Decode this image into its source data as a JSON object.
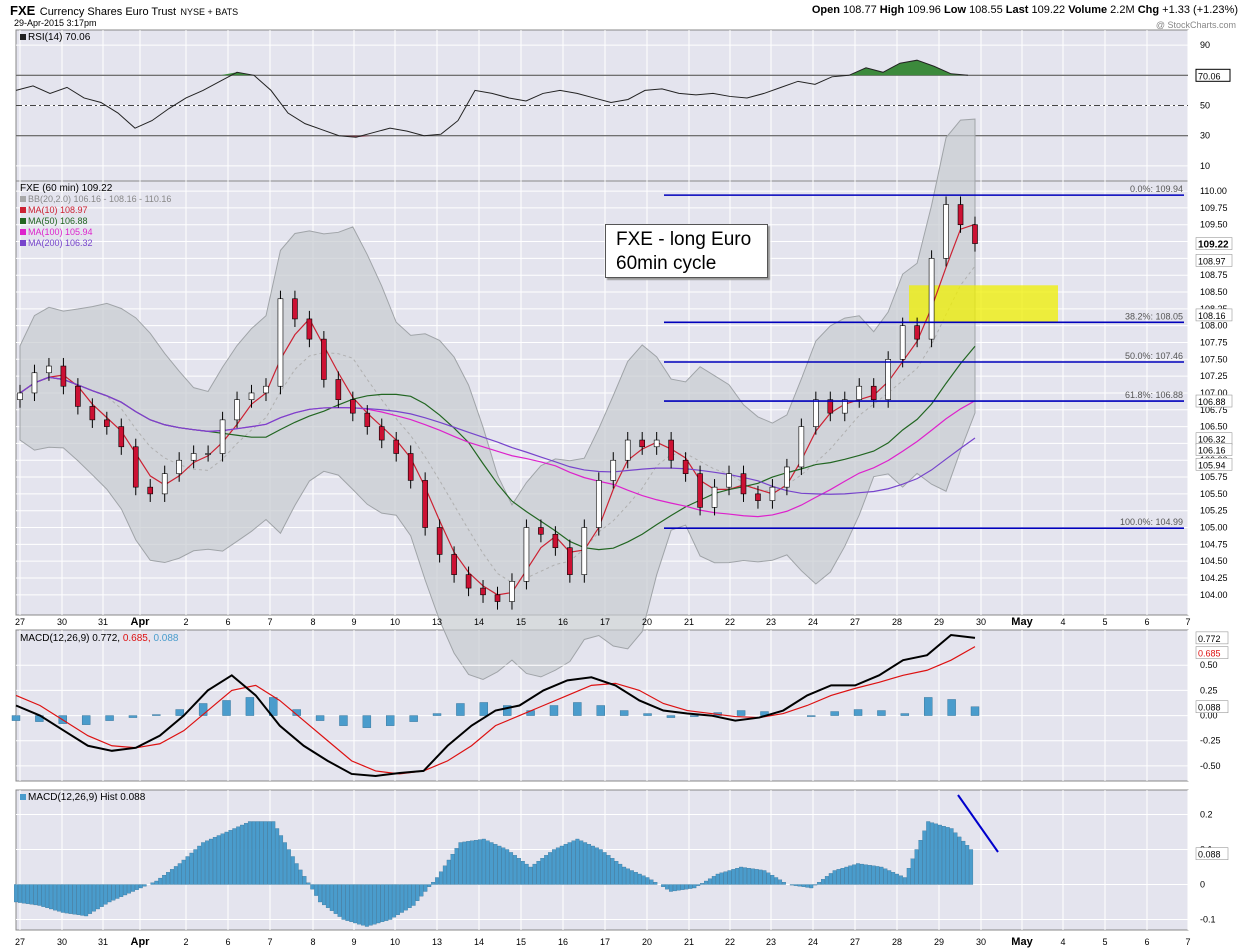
{
  "header": {
    "symbol": "FXE",
    "name": "Currency Shares Euro Trust",
    "exchange": "NYSE + BATS",
    "datetime": "29-Apr-2015 3:17pm",
    "open_label": "Open",
    "open": "108.77",
    "high_label": "High",
    "high": "109.96",
    "low_label": "Low",
    "low": "108.55",
    "last_label": "Last",
    "last": "109.22",
    "volume_label": "Volume",
    "volume": "2.2M",
    "chg_label": "Chg",
    "chg": "+1.33 (+1.23%)",
    "watermark": "@ StockCharts.com"
  },
  "annotation": {
    "line1": "FXE - long Euro",
    "line2": "60min cycle"
  },
  "chart_data": [
    {
      "type": "line",
      "panel": "rsi",
      "legend": "RSI(14) 70.06",
      "ylim": [
        0,
        100
      ],
      "yticks": [
        10,
        30,
        50,
        70,
        90
      ],
      "reference_lines": [
        30,
        50,
        70
      ],
      "last_label": "70.06",
      "values": [
        60,
        63,
        58,
        62,
        55,
        52,
        45,
        35,
        40,
        48,
        55,
        60,
        66,
        72,
        70,
        60,
        45,
        38,
        34,
        30,
        29,
        32,
        35,
        33,
        30,
        31,
        40,
        60,
        58,
        55,
        53,
        58,
        60,
        58,
        55,
        52,
        54,
        60,
        61,
        58,
        57,
        58,
        56,
        55,
        58,
        62,
        66,
        64,
        69,
        70,
        75,
        72,
        78,
        80,
        76,
        71,
        70
      ]
    },
    {
      "type": "candlestick",
      "panel": "price",
      "title": "FXE (60 min) 109.22",
      "ylim": [
        103.7,
        110.15
      ],
      "yticks": [
        104.0,
        104.25,
        104.5,
        104.75,
        105.0,
        105.25,
        105.5,
        105.75,
        106.0,
        106.25,
        106.5,
        106.75,
        107.0,
        107.25,
        107.5,
        107.75,
        108.0,
        108.25,
        108.5,
        108.75,
        109.0,
        109.25,
        109.5,
        109.75,
        110.0
      ],
      "x_labels": [
        "27",
        "30",
        "31",
        "Apr",
        "2",
        "6",
        "7",
        "8",
        "9",
        "10",
        "13",
        "14",
        "15",
        "16",
        "17",
        "20",
        "21",
        "22",
        "23",
        "24",
        "27",
        "28",
        "29",
        "30",
        "May",
        "4",
        "5",
        "6",
        "7"
      ],
      "legend": [
        {
          "label": "BB(20,2.0) 106.16 - 108.16 - 110.16",
          "color": "#a8a8a8"
        },
        {
          "label": "MA(10) 108.97",
          "color": "#cc2233"
        },
        {
          "label": "MA(50) 106.88",
          "color": "#226622"
        },
        {
          "label": "MA(100) 105.94",
          "color": "#dd22cc"
        },
        {
          "label": "MA(200) 106.32",
          "color": "#7744cc"
        }
      ],
      "closes": [
        107.0,
        107.3,
        107.4,
        107.1,
        106.8,
        106.6,
        106.5,
        106.2,
        105.6,
        105.5,
        105.8,
        106.0,
        106.1,
        106.1,
        106.6,
        106.9,
        107.0,
        107.1,
        108.4,
        108.1,
        107.8,
        107.2,
        106.9,
        106.7,
        106.5,
        106.3,
        106.1,
        105.7,
        105.0,
        104.6,
        104.3,
        104.1,
        104.0,
        103.9,
        104.2,
        105.0,
        104.9,
        104.7,
        104.3,
        105.0,
        105.7,
        106.0,
        106.3,
        106.2,
        106.3,
        106.0,
        105.8,
        105.3,
        105.6,
        105.8,
        105.5,
        105.4,
        105.6,
        105.9,
        106.5,
        106.9,
        106.7,
        106.9,
        107.1,
        106.9,
        107.5,
        108.0,
        107.8,
        109.0,
        109.8,
        109.5,
        109.22
      ],
      "fibonacci": [
        {
          "label": "0.0%: 109.94",
          "value": 109.94
        },
        {
          "label": "38.2%: 108.05",
          "value": 108.05
        },
        {
          "label": "50.0%: 107.46",
          "value": 107.46
        },
        {
          "label": "61.8%: 106.88",
          "value": 106.88
        },
        {
          "label": "100.0%: 104.99",
          "value": 104.99
        }
      ],
      "highlight_zone": [
        108.05,
        108.6
      ],
      "right_labels": [
        {
          "text": "109.22",
          "value": 109.22,
          "bold": true
        },
        {
          "text": "108.97",
          "value": 108.97
        },
        {
          "text": "108.16",
          "value": 108.16
        },
        {
          "text": "106.88",
          "value": 106.88
        },
        {
          "text": "106.32",
          "value": 106.32
        },
        {
          "text": "106.16",
          "value": 106.16
        },
        {
          "text": "105.94",
          "value": 105.94
        }
      ]
    },
    {
      "type": "line",
      "panel": "macd",
      "legend_prefix": "MACD(12,26,9)",
      "macd": "0.772",
      "signal": "0.685",
      "hist": "0.088",
      "ylim": [
        -0.65,
        0.85
      ],
      "yticks": [
        -0.5,
        -0.25,
        0.0,
        0.25,
        0.5
      ],
      "right_labels": [
        "0.772",
        "0.685",
        "0.088"
      ],
      "values": [
        0.1,
        0.0,
        -0.15,
        -0.3,
        -0.35,
        -0.32,
        -0.2,
        0.0,
        0.25,
        0.4,
        0.2,
        -0.1,
        -0.3,
        -0.45,
        -0.58,
        -0.6,
        -0.57,
        -0.55,
        -0.3,
        -0.1,
        0.05,
        0.1,
        0.25,
        0.35,
        0.38,
        0.3,
        0.15,
        0.05,
        0.02,
        0.0,
        -0.05,
        -0.02,
        0.05,
        0.2,
        0.3,
        0.3,
        0.4,
        0.55,
        0.6,
        0.8,
        0.772
      ],
      "signal_values": [
        0.2,
        0.1,
        -0.05,
        -0.2,
        -0.3,
        -0.32,
        -0.28,
        -0.15,
        0.05,
        0.25,
        0.3,
        0.15,
        -0.05,
        -0.25,
        -0.45,
        -0.55,
        -0.58,
        -0.55,
        -0.45,
        -0.3,
        -0.1,
        0.0,
        0.1,
        0.2,
        0.3,
        0.32,
        0.25,
        0.12,
        0.05,
        0.02,
        -0.01,
        -0.02,
        0.02,
        0.1,
        0.2,
        0.27,
        0.33,
        0.4,
        0.45,
        0.55,
        0.685
      ]
    },
    {
      "type": "bar",
      "panel": "hist",
      "legend": "MACD(12,26,9) Hist 0.088",
      "ylim": [
        -0.13,
        0.27
      ],
      "yticks": [
        -0.1,
        0.0,
        0.1,
        0.2
      ],
      "right_label": "0.088",
      "values": [
        -0.05,
        -0.06,
        -0.08,
        -0.09,
        -0.05,
        -0.02,
        0.01,
        0.06,
        0.12,
        0.15,
        0.18,
        0.18,
        0.06,
        -0.05,
        -0.1,
        -0.12,
        -0.1,
        -0.06,
        0.02,
        0.12,
        0.13,
        0.1,
        0.05,
        0.1,
        0.13,
        0.1,
        0.05,
        0.02,
        -0.02,
        -0.01,
        0.03,
        0.05,
        0.04,
        0.0,
        -0.01,
        0.04,
        0.06,
        0.05,
        0.02,
        0.18,
        0.16,
        0.088
      ]
    }
  ]
}
